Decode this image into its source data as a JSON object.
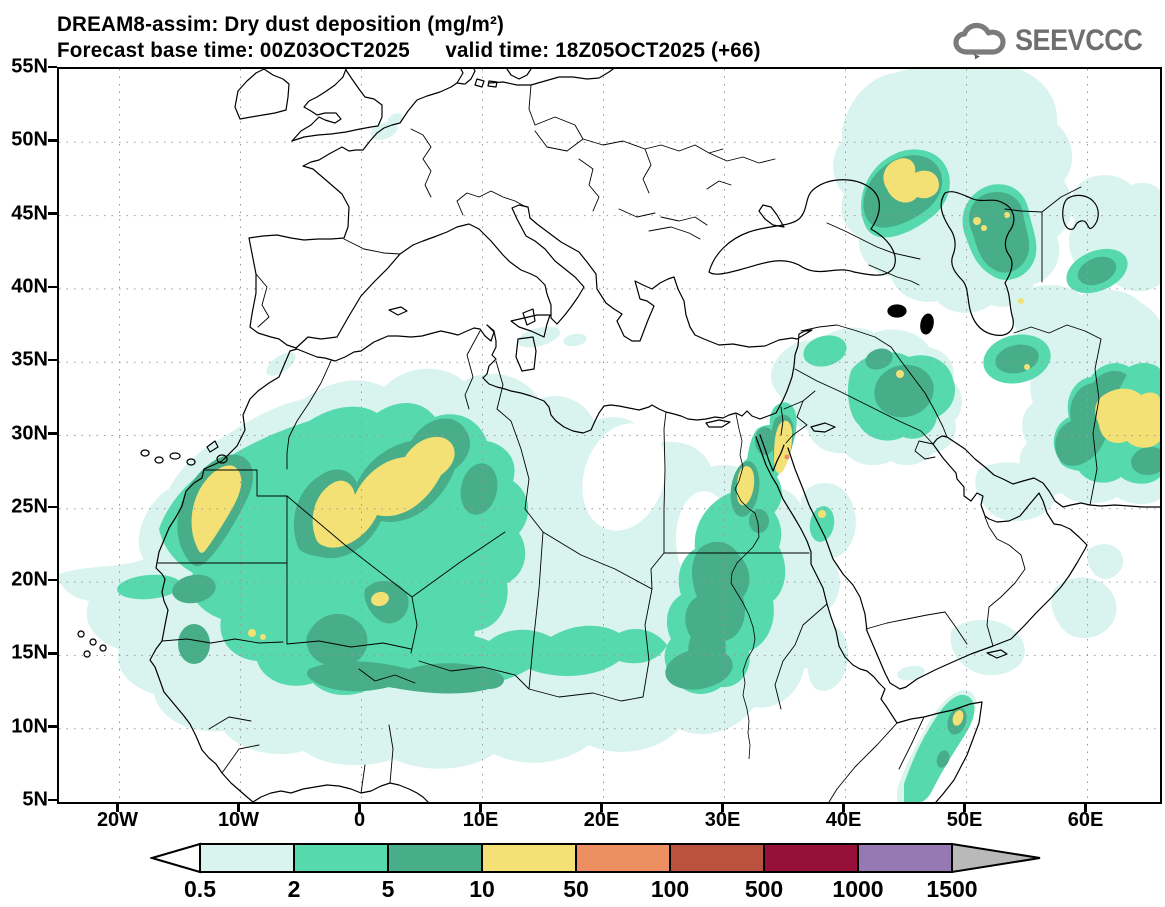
{
  "header": {
    "title": "DREAM8-assim: Dry dust deposition (mg/m²)",
    "subtitle": "Forecast base time: 00Z03OCT2025      valid time: 18Z05OCT2025 (+66)"
  },
  "branding": {
    "logo_text": "SEEVCCC"
  },
  "map": {
    "y_axis_labels": [
      "55N",
      "50N",
      "45N",
      "40N",
      "35N",
      "30N",
      "25N",
      "20N",
      "15N",
      "10N",
      "5N"
    ],
    "x_axis_labels": [
      "20W",
      "10W",
      "0",
      "10E",
      "20E",
      "30E",
      "40E",
      "50E",
      "60E"
    ]
  },
  "colorbar": {
    "levels": [
      "0.5",
      "2",
      "5",
      "10",
      "50",
      "100",
      "500",
      "1000",
      "1500"
    ],
    "segment_colors": [
      "#d9f4ee",
      "#55d9ad",
      "#47ae89",
      "#f3e175",
      "#ee8f62",
      "#bb5240",
      "#97103a",
      "#9678b2"
    ],
    "underflow_color": "#ffffff",
    "overflow_color": "#b9b9b9",
    "outline_color": "#000000"
  },
  "map_palette": {
    "level_0p5_2": "#d9f4ee",
    "level_2_5": "#55d9ad",
    "level_5_10": "#47ae89",
    "level_10_50": "#f3e175",
    "level_50_100": "#ee8f62"
  }
}
